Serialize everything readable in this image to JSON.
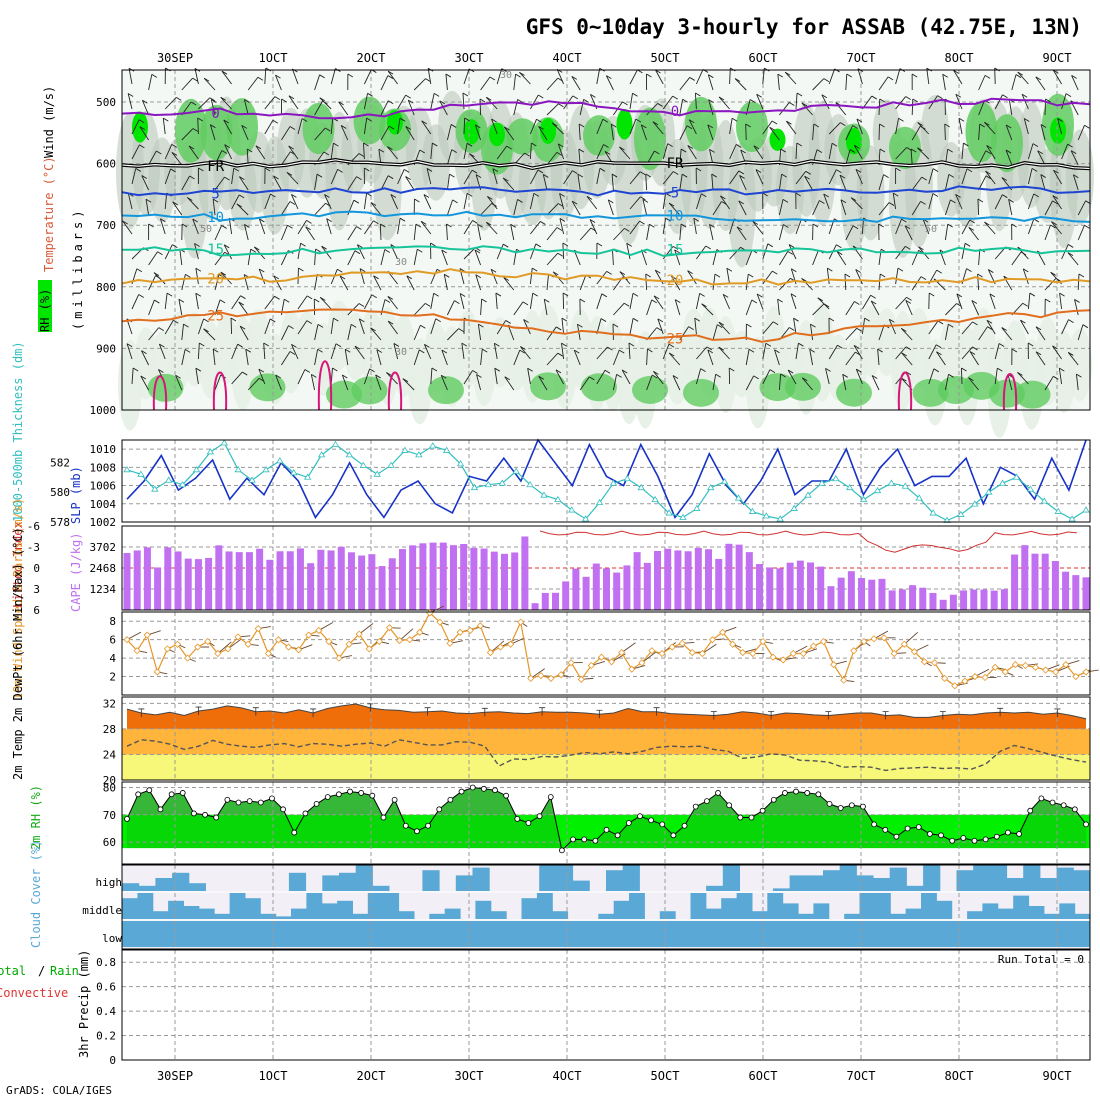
{
  "title": "GFS 0~10day 3-hourly for ASSAB (42.75E, 13N)",
  "credit": "GrADS: COLA/IGES",
  "colors": {
    "humid_light": "#e6efe6",
    "humid_mid": "#bcc9bc",
    "rh_green": "#60cc60",
    "rh_bright": "#00e600",
    "temp_purple": "#8a16c0",
    "temp_black": "#000000",
    "temp_blue": "#1e44d2",
    "temp_lblue": "#1296dc",
    "temp_teal": "#17c49a",
    "temp_gold": "#e09a26",
    "temp_orange": "#e06e1e",
    "temp_magenta": "#d8157a",
    "slp": "#1632c8",
    "thickness": "#32bebe",
    "cape": "#c070f0",
    "lifted_index": "#d03232",
    "wind_speed": "#e69628",
    "barb": "#644632",
    "temp_fill": "#f06e0a",
    "temp_mid": "#ffb43c",
    "temp_low": "#f7f77a",
    "rh_dark": "#14aa14",
    "rh_light": "#00f000",
    "cloud": "#5aa8d6",
    "cloud_bg": "#f2f0f6"
  },
  "dates": [
    "30SEP",
    "1OCT",
    "2OCT",
    "3OCT",
    "4OCT",
    "5OCT",
    "6OCT",
    "7OCT",
    "8OCT",
    "9OCT"
  ],
  "chart_data": [
    {
      "type": "heatmap",
      "panel": "upper-air",
      "ylabel_rh": "RH (%)",
      "ylabel_temp": "Temperature (°C)",
      "ylabel_wind": "Wind (m/s)",
      "ylabel_units": "(millibars)",
      "pressure_levels": [
        500,
        600,
        700,
        800,
        900,
        1000
      ],
      "temperature_contours": [
        {
          "label": "0",
          "pressure": [
            520,
            514,
            528,
            510,
            498,
            520,
            512,
            505,
            498,
            502
          ]
        },
        {
          "label": "FR",
          "pressure": [
            603,
            602,
            598,
            600,
            603,
            600,
            602,
            598,
            603,
            604
          ]
        },
        {
          "label": "5",
          "pressure": [
            650,
            648,
            645,
            642,
            646,
            648,
            645,
            643,
            640,
            645
          ]
        },
        {
          "label": "10",
          "pressure": [
            683,
            688,
            683,
            680,
            685,
            688,
            688,
            690,
            688,
            692
          ]
        },
        {
          "label": "15",
          "pressure": [
            738,
            745,
            740,
            738,
            740,
            745,
            740,
            742,
            740,
            745
          ]
        },
        {
          "label": "20",
          "pressure": [
            792,
            790,
            782,
            775,
            782,
            790,
            793,
            790,
            788,
            790
          ]
        },
        {
          "label": "25",
          "pressure": [
            858,
            845,
            840,
            850,
            870,
            882,
            885,
            865,
            850,
            840
          ]
        }
      ],
      "rh_contour_labels": [
        "30",
        "50"
      ]
    },
    {
      "type": "line",
      "panel": "slp-thickness",
      "ylabel_left": "1000-500mb Thickness (dm)",
      "ylabel_right": "SLP (mb)",
      "thickness_ticks": [
        582,
        580,
        578
      ],
      "slp_ticks": [
        1010,
        1008,
        1006,
        1004,
        1002
      ],
      "ylim_slp": [
        1002,
        1011
      ],
      "ylim_thickness": [
        578,
        583.5
      ],
      "series": [
        {
          "name": "SLP",
          "values": [
            1004.5,
            1006.5,
            1009.3,
            1005.5,
            1006.8,
            1008.8,
            1004.5,
            1006.8,
            1005,
            1008.5,
            1006.5,
            1002.5,
            1005,
            1008.5,
            1005,
            1002.5,
            1005.5,
            1006.5,
            1004,
            1003,
            1007,
            1006.5,
            1009,
            1006.5,
            1011,
            1008.5,
            1006,
            1010.5,
            1007,
            1006,
            1010.5,
            1007,
            1002.5,
            1005,
            1009.5,
            1006,
            1004,
            1006.5,
            1010,
            1005,
            1006.5,
            1006.5,
            1010,
            1005,
            1008,
            1010,
            1006,
            1007,
            1007,
            1009,
            1004,
            1008,
            1007,
            1004.5,
            1009,
            1005.5,
            1011
          ]
        },
        {
          "name": "1000-500mb Thickness",
          "values": [
            581.5,
            581.2,
            580.2,
            580.8,
            580.5,
            581.5,
            582.7,
            583.3,
            581.5,
            580.8,
            581.5,
            582.1,
            581.3,
            581,
            582.5,
            583.2,
            582.5,
            581.8,
            581.2,
            581.8,
            582.8,
            582.5,
            583.1,
            582.8,
            581.9,
            580.3,
            580.5,
            580.6,
            581.4,
            580.5,
            579.8,
            579.5,
            578.8,
            578.2,
            579.3,
            580.6,
            580.9,
            580.3,
            579.5,
            578.6,
            578.3,
            578.9,
            580.3,
            580.7,
            579.6,
            578.7,
            578.4,
            578.2,
            578.9,
            579.8,
            580.6,
            580.9,
            580.3,
            579.5,
            580.1,
            580.6,
            580.4,
            579.6,
            578.6,
            578.1,
            578.5,
            579.2,
            580,
            580.6,
            581,
            580.2,
            579.4,
            578.7,
            578.2,
            578.8
          ]
        }
      ]
    },
    {
      "type": "bar",
      "panel": "cape-li",
      "ylabel_left": "Lifted Index",
      "ylabel_right": "CAPE (J/kg)",
      "li_ticks": [
        -6,
        -3,
        0,
        3,
        6
      ],
      "cape_ticks": [
        3702,
        2468,
        1234
      ],
      "ylim_cape": [
        0,
        4936
      ],
      "cape_values": [
        3350,
        3500,
        3680,
        2500,
        3680,
        3440,
        3020,
        2990,
        3060,
        3800,
        3440,
        3400,
        3400,
        3600,
        2950,
        3450,
        3450,
        3620,
        2750,
        3540,
        3500,
        3710,
        3390,
        3200,
        3280,
        2580,
        3040,
        3580,
        3800,
        3920,
        3960,
        3960,
        3810,
        3880,
        3650,
        3610,
        3430,
        3300,
        3380,
        4320,
        400,
        1000,
        1010,
        1680,
        2430,
        1950,
        2730,
        2450,
        2200,
        2620,
        3400,
        2770,
        3470,
        3600,
        3500,
        3450,
        3650,
        3570,
        3000,
        3890,
        3840,
        3400,
        2700,
        2500,
        2450,
        2780,
        2900,
        2790,
        2550,
        1400,
        1900,
        2280,
        1880,
        1780,
        1830,
        1150,
        1210,
        1460,
        1310,
        1000,
        600,
        900,
        1150,
        1200,
        1200,
        1140,
        1220,
        3260,
        3810,
        3310,
        3310,
        2880,
        2250,
        2050,
        1920
      ]
    },
    {
      "type": "line",
      "panel": "wind-10m",
      "ylabel": "10m Wind Speed & Barbs (m/s)",
      "y_ticks": [
        8,
        6,
        4,
        2
      ],
      "ylim": [
        0,
        9
      ],
      "values": [
        6,
        4.8,
        6.5,
        2.5,
        5,
        5.5,
        4,
        5.2,
        5.8,
        4.5,
        5,
        6.3,
        5.5,
        7.2,
        4.5,
        6,
        5.2,
        4.9,
        6.5,
        7,
        5.8,
        4,
        5.5,
        6.6,
        5,
        5.8,
        7.3,
        5.9,
        6,
        6.8,
        8.9,
        7.9,
        5.6,
        6.8,
        7,
        7.5,
        4.6,
        5.2,
        5.5,
        7.9,
        1.8,
        2.1,
        1.8,
        2.2,
        3.5,
        1.7,
        3.2,
        4.1,
        3.6,
        4.6,
        2.8,
        3.5,
        4.8,
        4.5,
        5.2,
        5.6,
        4.6,
        4.5,
        6,
        6.8,
        5.5,
        4.6,
        4.5,
        5.8,
        4.1,
        3.8,
        4.5,
        4.5,
        5.3,
        5.8,
        3.3,
        1.6,
        4.8,
        5.8,
        6.1,
        6.2,
        4.5,
        5.5,
        4.7,
        3.6,
        3.5,
        1.8,
        1,
        1.5,
        2,
        1.9,
        3,
        2.5,
        3.3,
        3.2,
        3,
        2.7,
        2.5,
        3.3,
        2,
        2.5
      ]
    },
    {
      "type": "area",
      "panel": "temperature-2m",
      "ylabel": "2m Temp 2m DewPt (6hr Min/Max) (°C)",
      "y_ticks": [
        32,
        28,
        24,
        20
      ],
      "ylim": [
        20,
        33
      ],
      "series": [
        {
          "name": "2m Temp",
          "values": [
            31.1,
            30.5,
            30.2,
            30.6,
            30.1,
            30.8,
            31.1,
            31.6,
            31.3,
            30.7,
            30.8,
            30.5,
            31,
            30.5,
            31.2,
            31.6,
            31.9,
            31.3,
            31,
            30.9,
            30.6,
            30.7,
            30.8,
            30.5,
            30.4,
            30.6,
            30.7,
            30.5,
            30.4,
            30.7,
            30.6,
            30.6,
            30.5,
            30.3,
            30.5,
            31.2,
            30.7,
            30.7,
            30.4,
            30.3,
            30.2,
            30.1,
            30.3,
            30.7,
            30.5,
            30.1,
            30.5,
            30.4,
            30.2,
            30.1,
            30.3,
            30.5,
            30.5,
            30.1,
            30.2,
            29.8,
            29.8,
            30.1,
            30.3,
            30.2,
            30.5,
            30.6,
            30.5,
            30.6,
            30.3,
            30.5,
            30.1,
            29.6
          ]
        },
        {
          "name": "2m DewPt",
          "values": [
            25.3,
            26.3,
            26.1,
            25.6,
            24.8,
            25.3,
            26.2,
            25.6,
            25.3,
            25.1,
            25.5,
            25.7,
            25.2,
            25.7,
            25.6,
            25.3,
            25.6,
            25.8,
            25.3,
            26.3,
            25.9,
            25.5,
            25.5,
            26,
            25.9,
            25.3,
            22.2,
            23.3,
            23.2,
            23.7,
            23.6,
            23.9,
            24.3,
            24.1,
            24.4,
            24.1,
            24.5,
            25.1,
            25.3,
            25.2,
            25.3,
            24.8,
            24.5,
            23.4,
            23.6,
            24.1,
            23.9,
            23.1,
            23,
            22.8,
            22,
            22.1,
            22,
            21.5,
            21.8,
            21.9,
            22,
            21.8,
            21.9,
            21.7,
            22.5,
            24.5,
            25.4,
            24.9,
            24.3,
            23.7,
            23.2,
            22.8
          ]
        }
      ]
    },
    {
      "type": "area",
      "panel": "rh-2m",
      "ylabel": "2m RH (%)",
      "y_ticks": [
        80,
        70,
        60
      ],
      "ylim": [
        52,
        82
      ],
      "values": [
        68.5,
        77.5,
        79,
        72,
        77.5,
        78,
        70.5,
        70,
        69,
        75.5,
        74.5,
        75,
        74.5,
        76,
        72,
        63.5,
        70.5,
        74,
        76.5,
        77.5,
        78.5,
        78,
        77,
        69,
        75.5,
        66,
        64,
        66,
        72,
        75.5,
        78.5,
        80,
        79.5,
        79,
        77,
        68.5,
        67,
        69.5,
        76.5,
        57,
        61,
        61,
        60.5,
        64.5,
        62.5,
        67,
        69.5,
        68,
        66.5,
        62.5,
        66,
        73,
        75,
        78,
        73.5,
        69,
        69,
        71.5,
        75.5,
        78,
        78.5,
        78,
        77.5,
        74,
        72.5,
        73.5,
        73,
        66.5,
        64.5,
        62,
        65,
        65.5,
        63,
        62.5,
        60.5,
        61.5,
        60.5,
        61,
        62,
        63.5,
        63,
        71.5,
        76,
        74.5,
        73.5,
        72,
        66.5
      ]
    },
    {
      "type": "bar",
      "panel": "cloud-cover",
      "ylabel": "Cloud Cover (%)",
      "levels": [
        "high",
        "middle",
        "low"
      ],
      "high_values": [
        30,
        20,
        50,
        70,
        30,
        0,
        0,
        0,
        0,
        0,
        70,
        0,
        60,
        70,
        100,
        20,
        0,
        0,
        80,
        0,
        60,
        90,
        0,
        0,
        0,
        100,
        100,
        40,
        0,
        80,
        100,
        0,
        0,
        0,
        0,
        20,
        100,
        0,
        0,
        10,
        60,
        60,
        80,
        100,
        60,
        50,
        90,
        20,
        100,
        0,
        80,
        100,
        100,
        50,
        100,
        50,
        90,
        80
      ],
      "middle_values": [
        80,
        100,
        30,
        70,
        50,
        40,
        20,
        100,
        80,
        20,
        10,
        40,
        100,
        60,
        70,
        20,
        100,
        100,
        30,
        0,
        20,
        40,
        0,
        70,
        30,
        0,
        80,
        100,
        30,
        0,
        0,
        20,
        70,
        100,
        0,
        30,
        0,
        100,
        40,
        80,
        100,
        30,
        100,
        60,
        20,
        60,
        0,
        20,
        100,
        100,
        20,
        40,
        100,
        70,
        0,
        30,
        60,
        40,
        90,
        50,
        20,
        60,
        20
      ],
      "low_values": [
        100,
        100,
        100,
        100,
        100,
        100,
        100,
        100,
        100,
        100,
        100,
        100,
        100,
        100,
        100,
        100,
        100,
        100,
        100,
        100,
        100,
        100,
        100,
        100,
        100,
        100,
        100,
        100,
        100,
        100
      ]
    },
    {
      "type": "bar",
      "panel": "precip",
      "ylabel": "3hr Precip (mm)",
      "legend_total": "Total",
      "legend_rain": "Rain",
      "legend_convective": "Convective",
      "run_total_label": "Run Total = 0",
      "y_ticks": [
        0.8,
        0.6,
        0.4,
        0.2,
        0
      ],
      "ylim": [
        0,
        0.9
      ],
      "values": []
    }
  ]
}
